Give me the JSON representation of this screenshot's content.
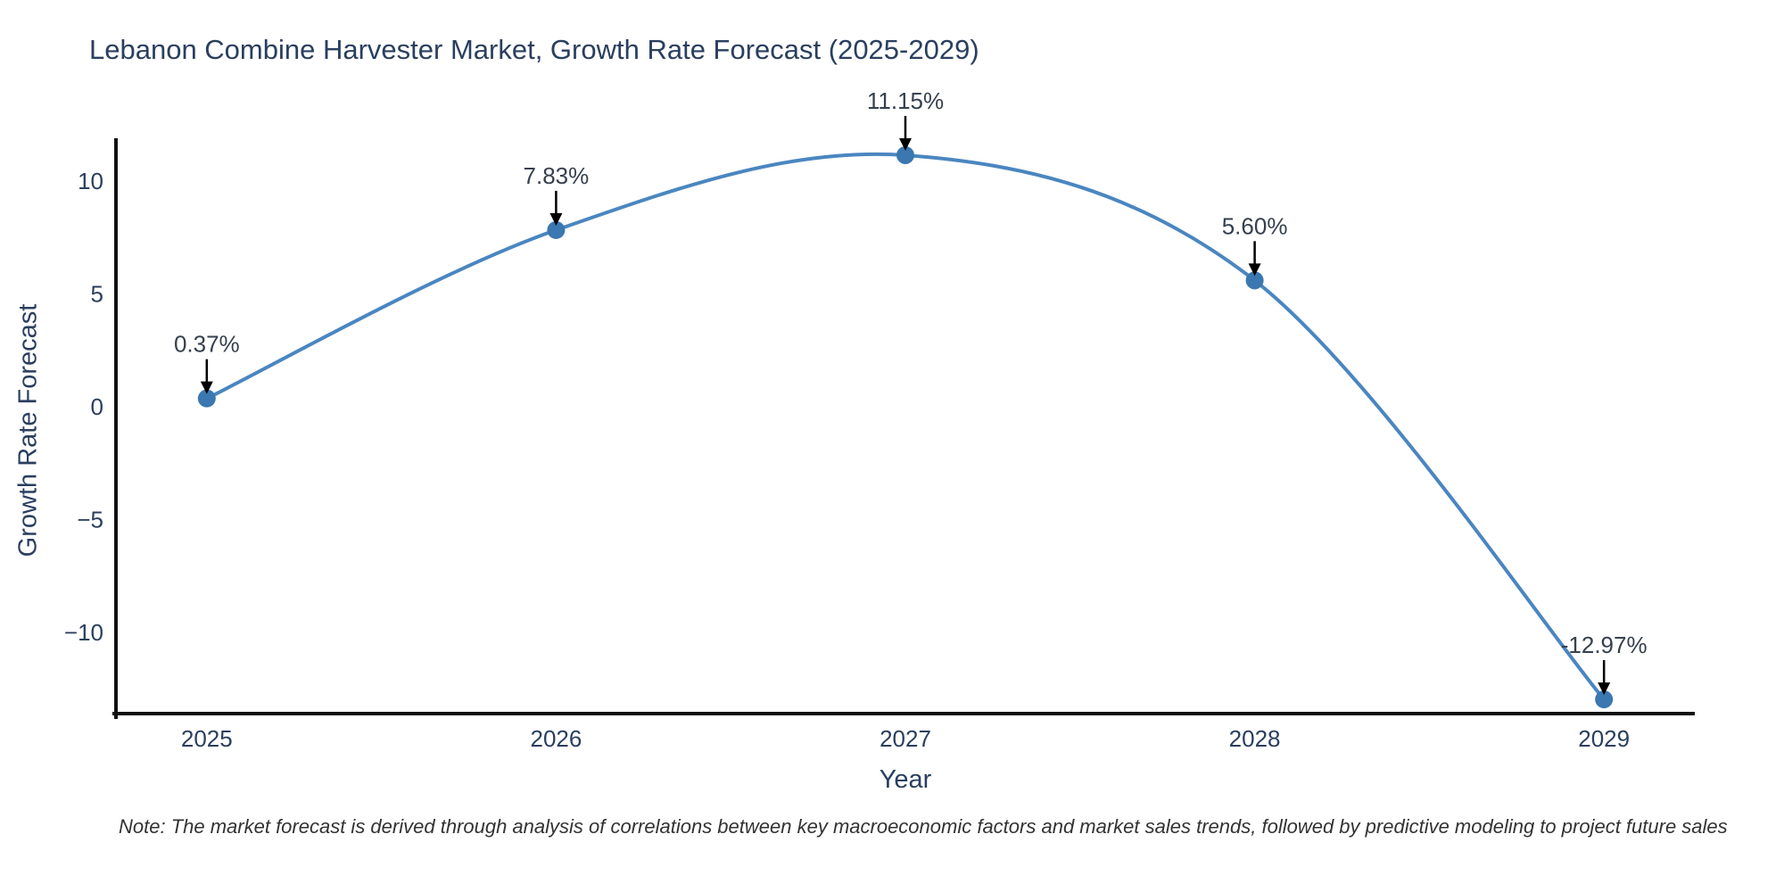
{
  "title": "Lebanon Combine Harvester Market, Growth Rate Forecast (2025-2029)",
  "note": "Note: The market forecast is derived through analysis of correlations between key macroeconomic factors and market sales trends, followed by predictive modeling to project future sales",
  "colors": {
    "line": "#4a86c0",
    "marker": "#3b77b0",
    "axis": "#111111",
    "chart_text": "#2a3f5f",
    "annotation_text": "#36404e",
    "arrow": "#000000",
    "background": "#ffffff"
  },
  "chart_data": {
    "type": "line",
    "title": "Lebanon Combine Harvester Market, Growth Rate Forecast (2025-2029)",
    "xlabel": "Year",
    "ylabel": "Growth Rate Forecast",
    "x": [
      2025,
      2026,
      2027,
      2028,
      2029
    ],
    "values": [
      0.37,
      7.83,
      11.15,
      5.6,
      -12.97
    ],
    "point_labels": [
      "0.37%",
      "7.83%",
      "11.15%",
      "5.60%",
      "-12.97%"
    ],
    "x_tick_labels": [
      "2025",
      "2026",
      "2027",
      "2028",
      "2029"
    ],
    "y_ticks": [
      10,
      5,
      0,
      -5,
      -10
    ],
    "y_tick_labels": [
      "10",
      "5",
      "0",
      "−5",
      "−10"
    ],
    "xlim": [
      2024.74,
      2029.26
    ],
    "ylim": [
      -13.6,
      11.9
    ],
    "grid": false,
    "legend": "none",
    "line_shape": "spline",
    "markers": true,
    "annotations_with_arrows": true
  }
}
